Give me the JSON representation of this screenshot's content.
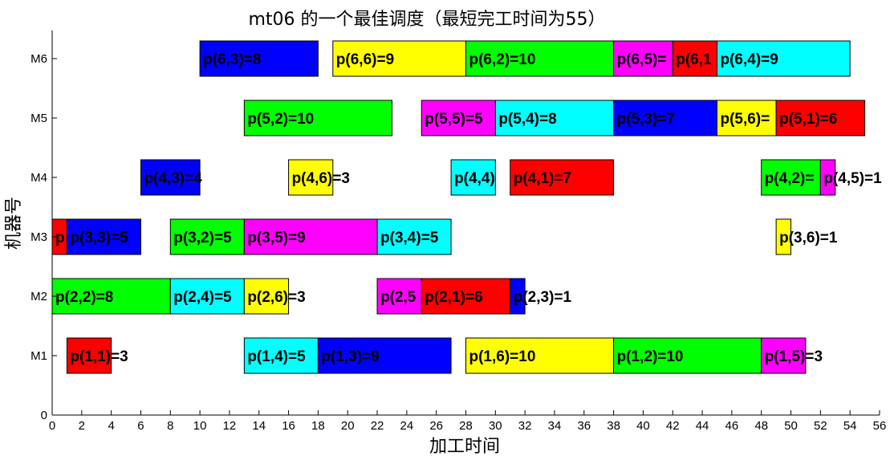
{
  "chart_data": {
    "type": "gantt",
    "title": "mt06 的一个最佳调度（最短完工时间为55）",
    "xlabel": "加工时间",
    "ylabel": "机器号",
    "xlim": [
      0,
      56
    ],
    "xticks": [
      0,
      2,
      4,
      6,
      8,
      10,
      12,
      14,
      16,
      18,
      20,
      22,
      24,
      26,
      28,
      30,
      32,
      34,
      36,
      38,
      40,
      42,
      44,
      46,
      48,
      50,
      52,
      54,
      56
    ],
    "yticks": [
      {
        "value": 0,
        "label": "0"
      },
      {
        "value": 1,
        "label": "M1"
      },
      {
        "value": 2,
        "label": "M2"
      },
      {
        "value": 3,
        "label": "M3"
      },
      {
        "value": 4,
        "label": "M4"
      },
      {
        "value": 5,
        "label": "M5"
      },
      {
        "value": 6,
        "label": "M6"
      }
    ],
    "grid": false,
    "job_colors": {
      "1": "#ff0000",
      "2": "#00ff00",
      "3": "#0000ff",
      "4": "#00ffff",
      "5": "#ff00ff",
      "6": "#ffff00"
    },
    "tasks": [
      {
        "machine": 1,
        "job": 1,
        "start": 1,
        "end": 4,
        "label": "p(1,1)=3"
      },
      {
        "machine": 1,
        "job": 4,
        "start": 13,
        "end": 18,
        "label": "p(1,4)=5"
      },
      {
        "machine": 1,
        "job": 3,
        "start": 18,
        "end": 27,
        "label": "p(1,3)=9"
      },
      {
        "machine": 1,
        "job": 6,
        "start": 28,
        "end": 38,
        "label": "p(1,6)=10"
      },
      {
        "machine": 1,
        "job": 2,
        "start": 38,
        "end": 48,
        "label": "p(1,2)=10"
      },
      {
        "machine": 1,
        "job": 5,
        "start": 48,
        "end": 51,
        "label": "p(1,5)=3"
      },
      {
        "machine": 2,
        "job": 2,
        "start": 0,
        "end": 8,
        "label": "p(2,2)=8"
      },
      {
        "machine": 2,
        "job": 4,
        "start": 8,
        "end": 13,
        "label": "p(2,4)=5"
      },
      {
        "machine": 2,
        "job": 6,
        "start": 13,
        "end": 16,
        "label": "p(2,6)=3"
      },
      {
        "machine": 2,
        "job": 5,
        "start": 22,
        "end": 25,
        "label": "p(2,5"
      },
      {
        "machine": 2,
        "job": 1,
        "start": 25,
        "end": 31,
        "label": "p(2,1)=6"
      },
      {
        "machine": 2,
        "job": 3,
        "start": 31,
        "end": 32,
        "label": "p(2,3)=1"
      },
      {
        "machine": 3,
        "job": 1,
        "start": 0,
        "end": 1,
        "label": "p"
      },
      {
        "machine": 3,
        "job": 3,
        "start": 1,
        "end": 6,
        "label": "p(3,3)=5"
      },
      {
        "machine": 3,
        "job": 2,
        "start": 8,
        "end": 13,
        "label": "p(3,2)=5"
      },
      {
        "machine": 3,
        "job": 5,
        "start": 13,
        "end": 22,
        "label": "p(3,5)=9"
      },
      {
        "machine": 3,
        "job": 4,
        "start": 22,
        "end": 27,
        "label": "p(3,4)=5"
      },
      {
        "machine": 3,
        "job": 6,
        "start": 49,
        "end": 50,
        "label": "p(3,6)=1"
      },
      {
        "machine": 4,
        "job": 3,
        "start": 6,
        "end": 10,
        "label": "p(4,3)=4"
      },
      {
        "machine": 4,
        "job": 6,
        "start": 16,
        "end": 19,
        "label": "p(4,6)=3"
      },
      {
        "machine": 4,
        "job": 4,
        "start": 27,
        "end": 30,
        "label": "p(4,4)"
      },
      {
        "machine": 4,
        "job": 1,
        "start": 31,
        "end": 38,
        "label": "p(4,1)=7"
      },
      {
        "machine": 4,
        "job": 2,
        "start": 48,
        "end": 52,
        "label": "p(4,2)="
      },
      {
        "machine": 4,
        "job": 5,
        "start": 52,
        "end": 53,
        "label": "p(4,5)=1"
      },
      {
        "machine": 5,
        "job": 2,
        "start": 13,
        "end": 23,
        "label": "p(5,2)=10"
      },
      {
        "machine": 5,
        "job": 5,
        "start": 25,
        "end": 30,
        "label": "p(5,5)=5"
      },
      {
        "machine": 5,
        "job": 4,
        "start": 30,
        "end": 38,
        "label": "p(5,4)=8"
      },
      {
        "machine": 5,
        "job": 3,
        "start": 38,
        "end": 45,
        "label": "p(5,3)=7"
      },
      {
        "machine": 5,
        "job": 6,
        "start": 45,
        "end": 49,
        "label": "p(5,6)="
      },
      {
        "machine": 5,
        "job": 1,
        "start": 49,
        "end": 55,
        "label": "p(5,1)=6"
      },
      {
        "machine": 6,
        "job": 3,
        "start": 10,
        "end": 18,
        "label": "p(6,3)=8"
      },
      {
        "machine": 6,
        "job": 6,
        "start": 19,
        "end": 28,
        "label": "p(6,6)=9"
      },
      {
        "machine": 6,
        "job": 2,
        "start": 28,
        "end": 38,
        "label": "p(6,2)=10"
      },
      {
        "machine": 6,
        "job": 5,
        "start": 38,
        "end": 42,
        "label": "p(6,5)="
      },
      {
        "machine": 6,
        "job": 1,
        "start": 42,
        "end": 45,
        "label": "p(6,1"
      },
      {
        "machine": 6,
        "job": 4,
        "start": 45,
        "end": 54,
        "label": "p(6,4)=9"
      }
    ]
  }
}
